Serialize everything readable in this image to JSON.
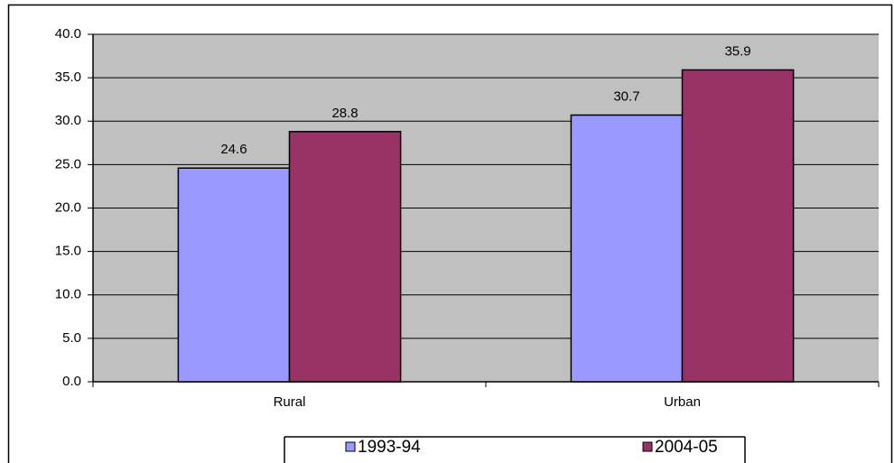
{
  "chart_data": {
    "type": "bar",
    "categories": [
      "Rural",
      "Urban"
    ],
    "series": [
      {
        "name": "1993-94",
        "color": "#9999ff",
        "values": [
          24.6,
          30.7
        ]
      },
      {
        "name": "2004-05",
        "color": "#993366",
        "values": [
          28.8,
          35.9
        ]
      }
    ],
    "ylim": [
      0,
      40
    ],
    "yticks": [
      {
        "value": 0,
        "label": "0.0"
      },
      {
        "value": 5,
        "label": "5.0"
      },
      {
        "value": 10,
        "label": "10.0"
      },
      {
        "value": 15,
        "label": "15.0"
      },
      {
        "value": 20,
        "label": "20.0"
      },
      {
        "value": 25,
        "label": "25.0"
      },
      {
        "value": 30,
        "label": "30.0"
      },
      {
        "value": 35,
        "label": "35.0"
      },
      {
        "value": 40,
        "label": "40.0"
      }
    ],
    "grid": true,
    "plot_background": "#c0c0c0",
    "legend_position": "bottom"
  }
}
